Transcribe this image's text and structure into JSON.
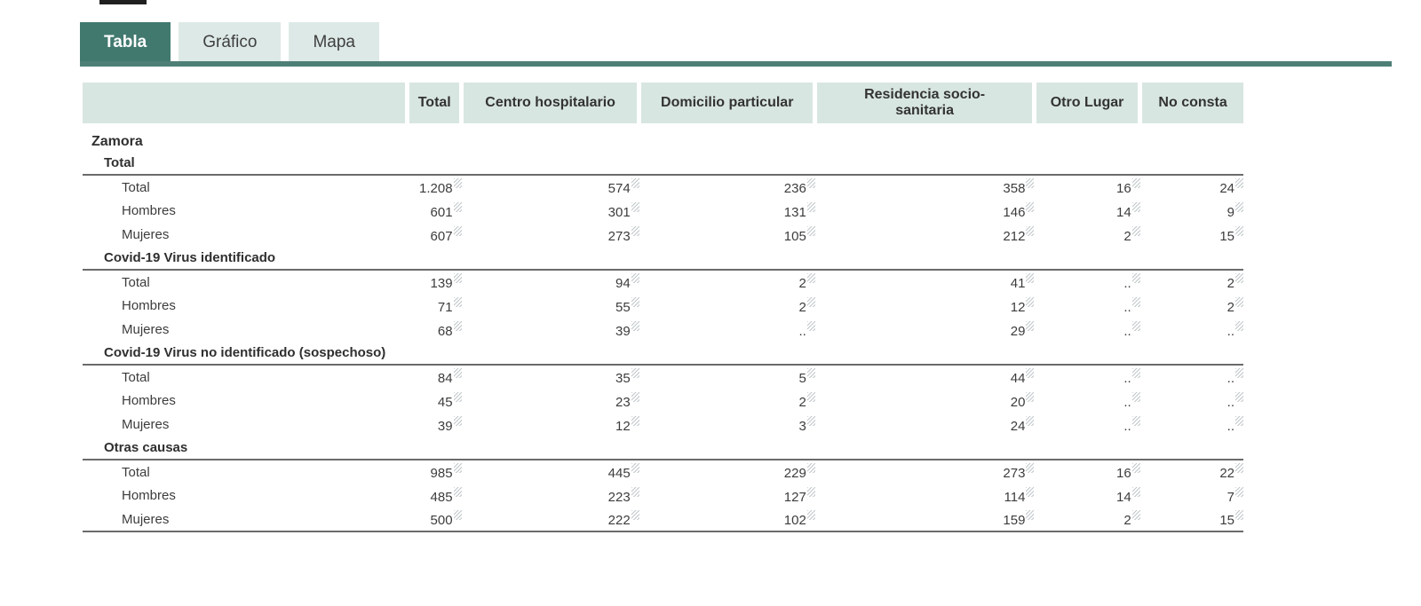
{
  "tabs": [
    {
      "label": "Tabla",
      "active": true
    },
    {
      "label": "Gráfico",
      "active": false
    },
    {
      "label": "Mapa",
      "active": false
    }
  ],
  "colors": {
    "accent_teal": "#41796f",
    "tab_inactive_bg": "#dde9e6",
    "header_cell_bg": "#d8e6e1",
    "rule_gray": "#6b6b6b",
    "text": "#3c3c3c"
  },
  "table": {
    "region": "Zamora",
    "columns": [
      "Total",
      "Centro hospitalario",
      "Domicilio particular",
      "Residencia socio-sanitaria",
      "Otro Lugar",
      "No consta"
    ],
    "missing_symbol": "..",
    "footnote_marker": "hatch-icon",
    "groups": [
      {
        "label": "Total",
        "rows": [
          {
            "label": "Total",
            "values": [
              "1.208",
              "574",
              "236",
              "358",
              "16",
              "24"
            ]
          },
          {
            "label": "Hombres",
            "values": [
              "601",
              "301",
              "131",
              "146",
              "14",
              "9"
            ]
          },
          {
            "label": "Mujeres",
            "values": [
              "607",
              "273",
              "105",
              "212",
              "2",
              "15"
            ]
          }
        ]
      },
      {
        "label": "Covid-19 Virus identificado",
        "rows": [
          {
            "label": "Total",
            "values": [
              "139",
              "94",
              "2",
              "41",
              "..",
              "2"
            ]
          },
          {
            "label": "Hombres",
            "values": [
              "71",
              "55",
              "2",
              "12",
              "..",
              "2"
            ]
          },
          {
            "label": "Mujeres",
            "values": [
              "68",
              "39",
              "..",
              "29",
              "..",
              ".."
            ]
          }
        ]
      },
      {
        "label": "Covid-19 Virus no identificado (sospechoso)",
        "rows": [
          {
            "label": "Total",
            "values": [
              "84",
              "35",
              "5",
              "44",
              "..",
              ".."
            ]
          },
          {
            "label": "Hombres",
            "values": [
              "45",
              "23",
              "2",
              "20",
              "..",
              ".."
            ]
          },
          {
            "label": "Mujeres",
            "values": [
              "39",
              "12",
              "3",
              "24",
              "..",
              ".."
            ]
          }
        ]
      },
      {
        "label": "Otras causas",
        "rows": [
          {
            "label": "Total",
            "values": [
              "985",
              "445",
              "229",
              "273",
              "16",
              "22"
            ]
          },
          {
            "label": "Hombres",
            "values": [
              "485",
              "223",
              "127",
              "114",
              "14",
              "7"
            ]
          },
          {
            "label": "Mujeres",
            "values": [
              "500",
              "222",
              "102",
              "159",
              "2",
              "15"
            ]
          }
        ]
      }
    ]
  }
}
